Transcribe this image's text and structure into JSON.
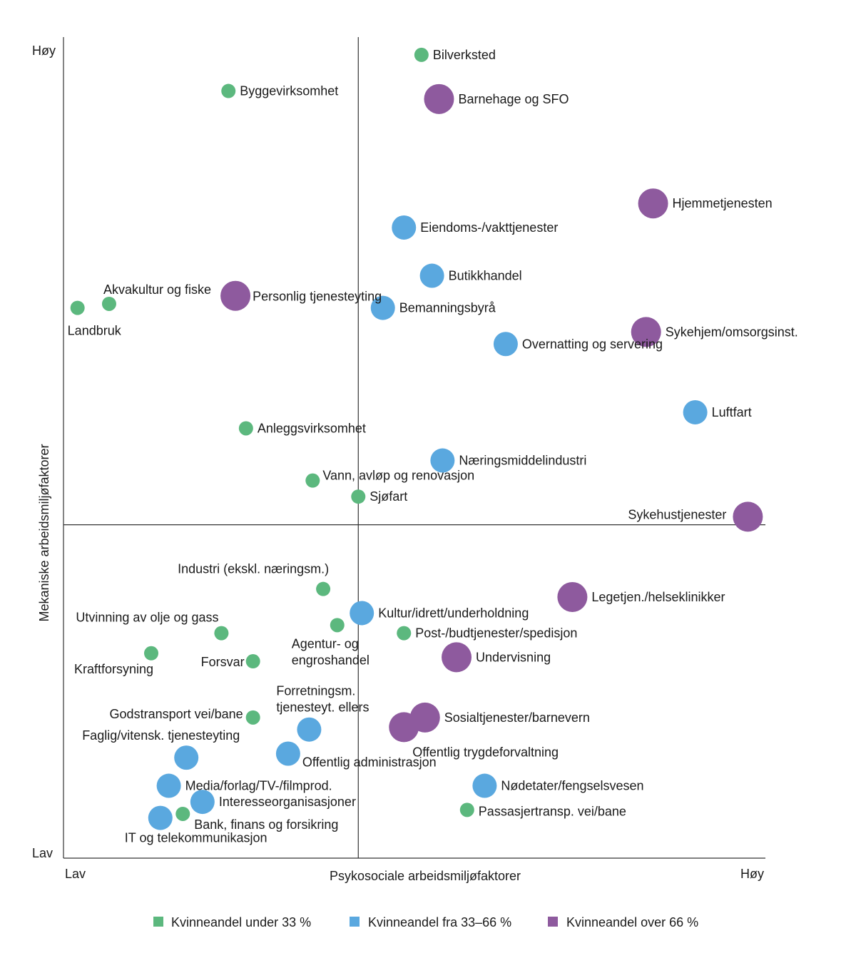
{
  "chart_data": {
    "type": "scatter",
    "xlabel": "Psykosociale arbeidsmiljøfaktorer",
    "ylabel": "Mekaniske arbeidsmiljøfaktorer",
    "x_low": "Lav",
    "x_high": "Høy",
    "y_low": "Lav",
    "y_high": "Høy",
    "xlim": [
      0,
      100
    ],
    "ylim": [
      0,
      100
    ],
    "quadrant_divider": {
      "x": 42,
      "y": 40
    },
    "grid": false,
    "legend_position": "bottom",
    "categories": [
      {
        "id": "low",
        "name": "Kvinneandel under 33 %",
        "color": "#5cb87e"
      },
      {
        "id": "mid",
        "name": "Kvinneandel fra 33–66 %",
        "color": "#5aa8df"
      },
      {
        "id": "high",
        "name": "Kvinneandel over 66 %",
        "color": "#8e5a9e"
      }
    ],
    "points": [
      {
        "label": "Bilverksted",
        "x": 51,
        "y": 98.5,
        "group": "low"
      },
      {
        "label": "Byggevirksomhet",
        "x": 23.5,
        "y": 94,
        "group": "low"
      },
      {
        "label": "Barnehage og SFO",
        "x": 53.5,
        "y": 93,
        "group": "high"
      },
      {
        "label": "Hjemmetjenesten",
        "x": 84,
        "y": 80,
        "group": "high"
      },
      {
        "label": "Eiendoms-/vakttjenester",
        "x": 48.5,
        "y": 77,
        "group": "mid"
      },
      {
        "label": "Butikkhandel",
        "x": 52.5,
        "y": 71,
        "group": "mid"
      },
      {
        "label": "Akvakultur og fiske",
        "x": 6.5,
        "y": 67.5,
        "group": "low"
      },
      {
        "label": "Landbruk",
        "x": 2,
        "y": 67,
        "group": "low"
      },
      {
        "label": "Personlig tjenesteyting",
        "x": 24.5,
        "y": 68.5,
        "group": "high"
      },
      {
        "label": "Bemanningsbyrå",
        "x": 45.5,
        "y": 67,
        "group": "mid"
      },
      {
        "label": "Sykehjem/omsorgsinst.",
        "x": 83,
        "y": 64,
        "group": "high"
      },
      {
        "label": "Overnatting og servering",
        "x": 63,
        "y": 62.5,
        "group": "mid"
      },
      {
        "label": "Luftfart",
        "x": 90,
        "y": 54,
        "group": "mid"
      },
      {
        "label": "Anleggsvirksomhet",
        "x": 26,
        "y": 52,
        "group": "low"
      },
      {
        "label": "Næringsmiddelindustri",
        "x": 54,
        "y": 48,
        "group": "mid"
      },
      {
        "label": "Vann, avløp og renovasjon",
        "x": 35.5,
        "y": 45.5,
        "group": "low"
      },
      {
        "label": "Sjøfart",
        "x": 42,
        "y": 43.5,
        "group": "low"
      },
      {
        "label": "Sykehustjenester",
        "x": 97.5,
        "y": 41,
        "group": "high"
      },
      {
        "label": "Industri (ekskl. næringsm.)",
        "x": 37,
        "y": 32,
        "group": "low"
      },
      {
        "label": "Kultur/idrett/underholdning",
        "x": 42.5,
        "y": 29,
        "group": "mid"
      },
      {
        "label": "Legetjen./helseklinikker",
        "x": 72.5,
        "y": 31,
        "group": "high"
      },
      {
        "label": "Utvinning av olje og gass",
        "x": 22.5,
        "y": 26.5,
        "group": "low"
      },
      {
        "label": "Agentur- og engroshandel",
        "x": 39,
        "y": 27.5,
        "group": "low"
      },
      {
        "label": "Post-/budtjenester/spedisjon",
        "x": 48.5,
        "y": 26.5,
        "group": "low"
      },
      {
        "label": "Kraftforsyning",
        "x": 12.5,
        "y": 24,
        "group": "low"
      },
      {
        "label": "Forsvar",
        "x": 27,
        "y": 23,
        "group": "low"
      },
      {
        "label": "Undervisning",
        "x": 56,
        "y": 23.5,
        "group": "high"
      },
      {
        "label": "Forretningsm. tjenesteyt. ellers",
        "x": 35,
        "y": 14.5,
        "group": "mid"
      },
      {
        "label": "Godstransport vei/bane",
        "x": 27,
        "y": 16,
        "group": "low"
      },
      {
        "label": "Sosialtjenester/barnevern",
        "x": 51.5,
        "y": 16,
        "group": "high"
      },
      {
        "label": "Offentlig trygdeforvaltning",
        "x": 48.5,
        "y": 14.8,
        "group": "high"
      },
      {
        "label": "Faglig/vitensk. tjenesteyting",
        "x": 17.5,
        "y": 11,
        "group": "mid"
      },
      {
        "label": "Offentlig administrasjon",
        "x": 32,
        "y": 11.5,
        "group": "mid"
      },
      {
        "label": "Media/forlag/TV-/filmprod.",
        "x": 15,
        "y": 7.5,
        "group": "mid"
      },
      {
        "label": "Nødetater/fengselsvesen",
        "x": 60,
        "y": 7.5,
        "group": "mid"
      },
      {
        "label": "Interesseorganisasjoner",
        "x": 19.8,
        "y": 5.5,
        "group": "mid"
      },
      {
        "label": "Passasjertransp. vei/bane",
        "x": 57.5,
        "y": 4.5,
        "group": "low"
      },
      {
        "label": "Bank, finans og forsikring",
        "x": 17,
        "y": 4,
        "group": "low"
      },
      {
        "label": "IT og telekommunikasjon",
        "x": 13.8,
        "y": 3.5,
        "group": "mid"
      }
    ]
  }
}
